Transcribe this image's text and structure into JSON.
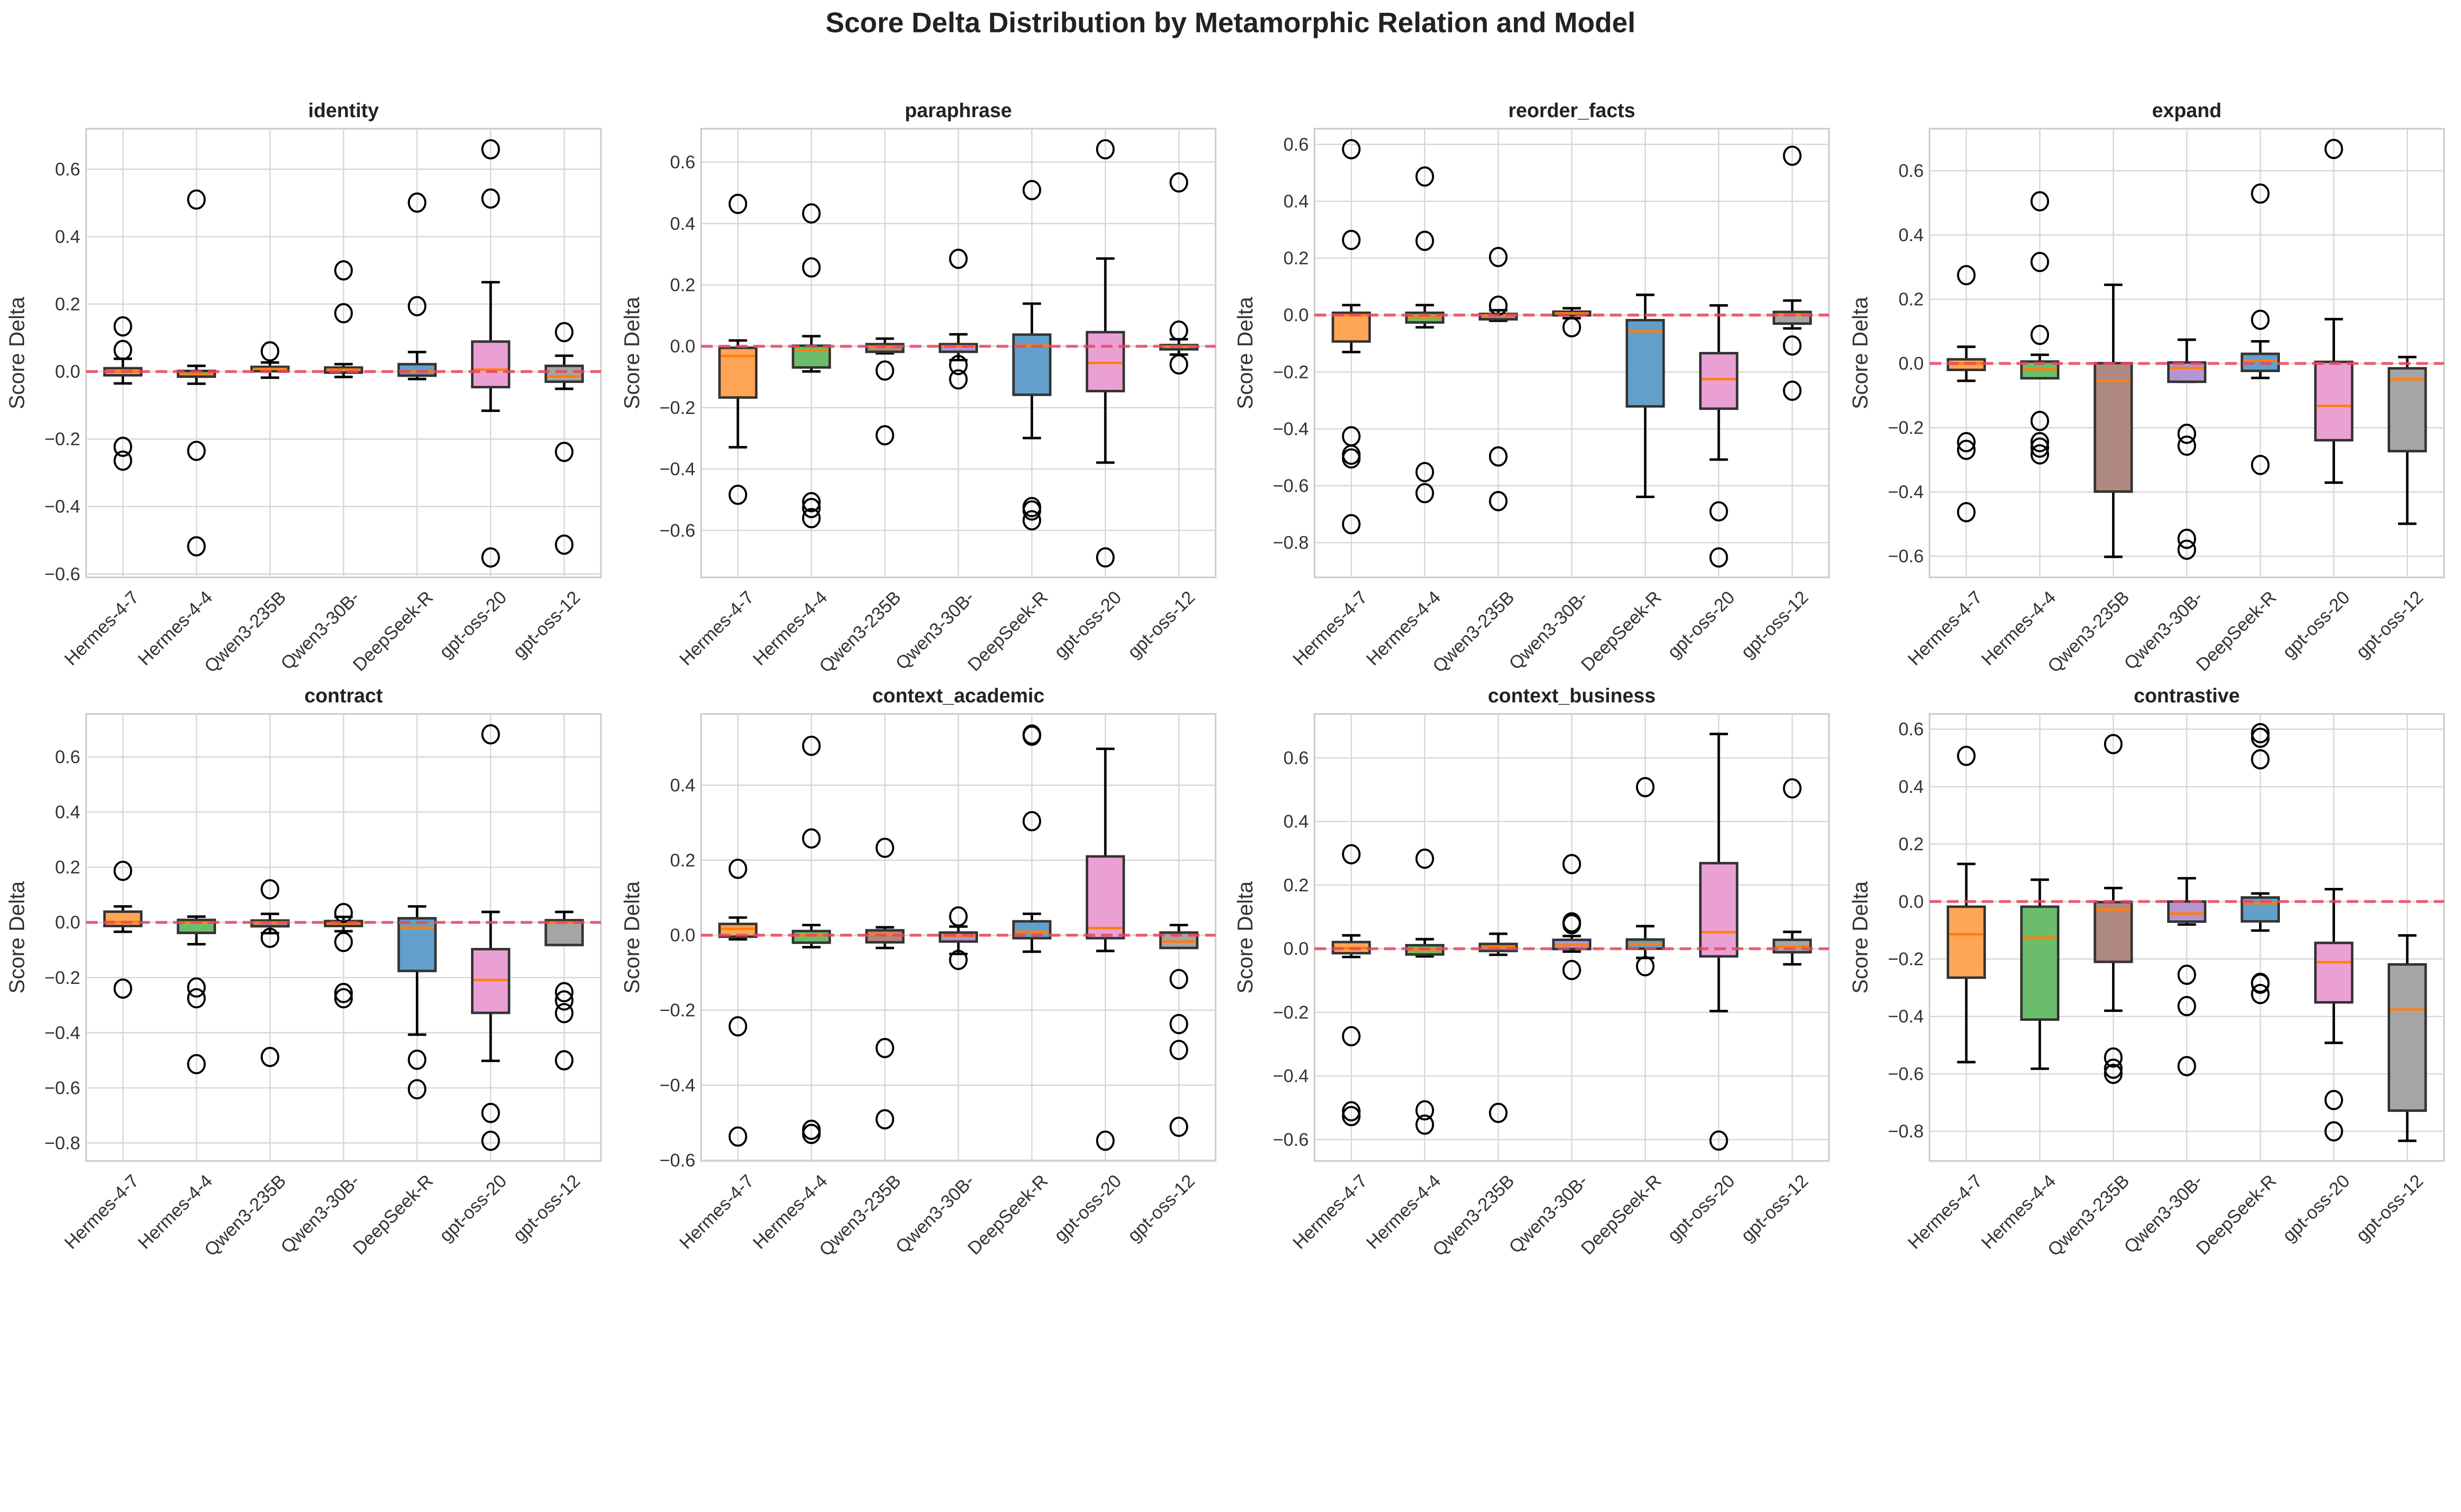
{
  "chart_data": {
    "title": "Score Delta Distribution by Metamorphic Relation and Model",
    "type": "box",
    "ylabel": "Score Delta",
    "categories": [
      "Hermes-4-7",
      "Hermes-4-4",
      "Qwen3-235B",
      "Qwen3-30B-",
      "DeepSeek-R",
      "gpt-oss-20",
      "gpt-oss-12"
    ],
    "box_colors": [
      "#ff7f0e",
      "#2ca02c",
      "#8c564b",
      "#9467bd",
      "#1f77b4",
      "#e377c2",
      "#7f7f7f"
    ],
    "median_color": "#ff7f0e",
    "reference_line": {
      "y": 0,
      "color": "#e8475f",
      "style": "dashed"
    },
    "grid": true,
    "box_format": [
      "whisker_low",
      "q1",
      "median",
      "q3",
      "whisker_high",
      "outliers"
    ],
    "panels": [
      {
        "title": "identity",
        "ylim": [
          -0.61,
          0.72
        ],
        "yticks": [
          -0.6,
          -0.4,
          -0.2,
          0.0,
          0.2,
          0.4,
          0.6
        ],
        "boxes": [
          [
            -0.035,
            -0.011,
            0.0,
            0.01,
            0.038,
            [
              0.134,
              0.064,
              -0.223,
              -0.264
            ]
          ],
          [
            -0.036,
            -0.015,
            -0.007,
            0.002,
            0.017,
            [
              0.51,
              -0.235,
              -0.518
            ]
          ],
          [
            -0.018,
            0.001,
            0.008,
            0.014,
            0.027,
            [
              0.06
            ]
          ],
          [
            -0.016,
            -0.003,
            0.006,
            0.012,
            0.022,
            [
              0.3,
              0.173
            ]
          ],
          [
            -0.022,
            -0.012,
            0.0,
            0.022,
            0.058,
            [
              0.501,
              0.194
            ]
          ],
          [
            -0.116,
            -0.046,
            0.006,
            0.089,
            0.265,
            [
              0.659,
              0.513,
              -0.551
            ]
          ],
          [
            -0.051,
            -0.03,
            -0.014,
            0.017,
            0.047,
            [
              0.117,
              -0.238,
              -0.513
            ]
          ]
        ]
      },
      {
        "title": "paraphrase",
        "ylim": [
          -0.753,
          0.709
        ],
        "yticks": [
          -0.6,
          -0.4,
          -0.2,
          0.0,
          0.2,
          0.4,
          0.6
        ],
        "boxes": [
          [
            -0.329,
            -0.167,
            -0.032,
            -0.005,
            0.019,
            [
              0.464,
              -0.484
            ]
          ],
          [
            -0.082,
            -0.069,
            -0.014,
            0.002,
            0.033,
            [
              0.433,
              0.257,
              -0.508,
              -0.527,
              -0.56
            ]
          ],
          [
            -0.023,
            -0.018,
            -0.001,
            0.007,
            0.025,
            [
              -0.079,
              -0.29
            ]
          ],
          [
            -0.045,
            -0.018,
            0.0,
            0.007,
            0.039,
            [
              0.285,
              -0.061,
              -0.108
            ]
          ],
          [
            -0.299,
            -0.158,
            0.002,
            0.038,
            0.139,
            [
              0.509,
              -0.524,
              -0.535,
              -0.567
            ]
          ],
          [
            -0.379,
            -0.146,
            -0.054,
            0.046,
            0.286,
            [
              0.642,
              -0.688
            ]
          ],
          [
            -0.027,
            -0.01,
            -0.001,
            0.004,
            0.023,
            [
              0.534,
              0.051,
              -0.059
            ]
          ]
        ]
      },
      {
        "title": "reorder_facts",
        "ylim": [
          -0.922,
          0.655
        ],
        "yticks": [
          -0.8,
          -0.6,
          -0.4,
          -0.2,
          0.0,
          0.2,
          0.4,
          0.6
        ],
        "boxes": [
          [
            -0.13,
            -0.093,
            0.0,
            0.008,
            0.035,
            [
              0.583,
              0.264,
              -0.426,
              -0.491,
              -0.504,
              -0.735
            ]
          ],
          [
            -0.043,
            -0.026,
            -0.007,
            0.008,
            0.035,
            [
              0.487,
              0.261,
              -0.552,
              -0.626
            ]
          ],
          [
            -0.02,
            -0.015,
            -0.001,
            0.004,
            0.017,
            [
              0.204,
              0.033,
              -0.497,
              -0.654
            ]
          ],
          [
            -0.011,
            -0.001,
            0.006,
            0.012,
            0.024,
            [
              -0.043
            ]
          ],
          [
            -0.639,
            -0.321,
            -0.057,
            -0.018,
            0.071,
            []
          ],
          [
            -0.508,
            -0.329,
            -0.225,
            -0.134,
            0.034,
            [
              -0.69,
              -0.852
            ]
          ],
          [
            -0.047,
            -0.03,
            0.001,
            0.011,
            0.051,
            [
              0.56,
              -0.107,
              -0.266
            ]
          ]
        ]
      },
      {
        "title": "expand",
        "ylim": [
          -0.666,
          0.731
        ],
        "yticks": [
          -0.6,
          -0.4,
          -0.2,
          0.0,
          0.2,
          0.4,
          0.6
        ],
        "boxes": [
          [
            -0.054,
            -0.02,
            0.0,
            0.013,
            0.052,
            [
              0.275,
              -0.245,
              -0.269,
              -0.463
            ]
          ],
          [
            -0.046,
            -0.046,
            -0.018,
            0.006,
            0.027,
            [
              0.505,
              0.316,
              0.089,
              -0.179,
              -0.245,
              -0.262,
              -0.283
            ]
          ],
          [
            -0.602,
            -0.399,
            -0.054,
            0.001,
            0.245,
            []
          ],
          [
            -0.057,
            -0.057,
            -0.014,
            0.003,
            0.074,
            [
              -0.219,
              -0.256,
              -0.546,
              -0.58
            ]
          ],
          [
            -0.045,
            -0.023,
            0.009,
            0.03,
            0.069,
            [
              0.529,
              0.136,
              -0.316
            ]
          ],
          [
            -0.371,
            -0.239,
            -0.132,
            0.005,
            0.138,
            [
              0.668
            ]
          ],
          [
            -0.499,
            -0.273,
            -0.049,
            -0.015,
            0.02,
            []
          ]
        ]
      },
      {
        "title": "contract",
        "ylim": [
          -0.865,
          0.756
        ],
        "yticks": [
          -0.8,
          -0.6,
          -0.4,
          -0.2,
          0.0,
          0.2,
          0.4,
          0.6
        ],
        "boxes": [
          [
            -0.034,
            -0.013,
            0.002,
            0.039,
            0.058,
            [
              0.187,
              -0.24
            ]
          ],
          [
            -0.079,
            -0.038,
            0.0,
            0.009,
            0.021,
            [
              -0.236,
              -0.275,
              -0.514
            ]
          ],
          [
            -0.039,
            -0.014,
            0.0,
            0.007,
            0.031,
            [
              0.12,
              -0.056,
              -0.488
            ]
          ],
          [
            -0.032,
            -0.013,
            -0.004,
            0.005,
            0.02,
            [
              0.034,
              -0.071,
              -0.256,
              -0.275
            ]
          ],
          [
            -0.407,
            -0.176,
            -0.019,
            0.015,
            0.058,
            [
              -0.498,
              -0.605
            ]
          ],
          [
            -0.502,
            -0.328,
            -0.209,
            -0.097,
            0.038,
            [
              0.682,
              -0.691,
              -0.792
            ]
          ],
          [
            -0.082,
            -0.082,
            0.0,
            0.008,
            0.038,
            [
              -0.253,
              -0.283,
              -0.329,
              -0.5
            ]
          ]
        ]
      },
      {
        "title": "context_academic",
        "ylim": [
          -0.602,
          0.59
        ],
        "yticks": [
          -0.6,
          -0.4,
          -0.2,
          0.0,
          0.2,
          0.4
        ],
        "boxes": [
          [
            -0.011,
            -0.004,
            0.017,
            0.03,
            0.047,
            [
              0.177,
              -0.243,
              -0.537
            ]
          ],
          [
            -0.032,
            -0.02,
            0.0,
            0.011,
            0.027,
            [
              0.505,
              0.258,
              -0.519,
              -0.53
            ]
          ],
          [
            -0.034,
            -0.019,
            0.003,
            0.013,
            0.021,
            [
              0.233,
              -0.301,
              -0.491
            ]
          ],
          [
            -0.05,
            -0.017,
            -0.002,
            0.007,
            0.023,
            [
              0.05,
              -0.066
            ]
          ],
          [
            -0.044,
            -0.008,
            0.009,
            0.037,
            0.057,
            [
              0.535,
              0.532,
              0.304
            ]
          ],
          [
            -0.042,
            -0.008,
            0.019,
            0.21,
            0.497,
            [
              -0.548
            ]
          ],
          [
            -0.034,
            -0.034,
            -0.017,
            0.007,
            0.027,
            [
              -0.117,
              -0.237,
              -0.306,
              -0.511
            ]
          ]
        ]
      },
      {
        "title": "context_business",
        "ylim": [
          -0.667,
          0.738
        ],
        "yticks": [
          -0.6,
          -0.4,
          -0.2,
          0.0,
          0.2,
          0.4,
          0.6
        ],
        "boxes": [
          [
            -0.026,
            -0.014,
            0.002,
            0.021,
            0.042,
            [
              0.297,
              -0.275,
              -0.511,
              -0.526
            ]
          ],
          [
            -0.024,
            -0.018,
            -0.003,
            0.011,
            0.03,
            [
              0.283,
              -0.508,
              -0.553
            ]
          ],
          [
            -0.019,
            -0.007,
            0.007,
            0.015,
            0.047,
            [
              -0.516
            ]
          ],
          [
            -0.009,
            -0.001,
            0.012,
            0.028,
            0.04,
            [
              0.266,
              0.083,
              0.077,
              -0.067
            ]
          ],
          [
            -0.029,
            0.0,
            0.015,
            0.029,
            0.071,
            [
              0.508,
              -0.055
            ]
          ],
          [
            -0.196,
            -0.024,
            0.052,
            0.269,
            0.675,
            [
              -0.603
            ]
          ],
          [
            -0.049,
            -0.011,
            0.006,
            0.028,
            0.053,
            [
              0.504
            ]
          ]
        ]
      },
      {
        "title": "contrastive",
        "ylim": [
          -0.903,
          0.653
        ],
        "yticks": [
          -0.8,
          -0.6,
          -0.4,
          -0.2,
          0.0,
          0.2,
          0.4,
          0.6
        ],
        "boxes": [
          [
            -0.559,
            -0.265,
            -0.114,
            -0.018,
            0.131,
            [
              0.507
            ]
          ],
          [
            -0.582,
            -0.411,
            -0.126,
            -0.018,
            0.076,
            []
          ],
          [
            -0.38,
            -0.21,
            -0.028,
            -0.002,
            0.047,
            [
              0.548,
              -0.543,
              -0.582,
              -0.6
            ]
          ],
          [
            -0.08,
            -0.07,
            -0.042,
            0.0,
            0.081,
            [
              -0.255,
              -0.364,
              -0.573
            ]
          ],
          [
            -0.101,
            -0.069,
            -0.006,
            0.014,
            0.028,
            [
              0.586,
              0.57,
              0.495,
              -0.283,
              -0.286,
              -0.322
            ]
          ],
          [
            -0.492,
            -0.351,
            -0.211,
            -0.144,
            0.043,
            [
              -0.691,
              -0.8
            ]
          ],
          [
            -0.833,
            -0.728,
            -0.376,
            -0.219,
            -0.118,
            []
          ]
        ]
      }
    ]
  }
}
